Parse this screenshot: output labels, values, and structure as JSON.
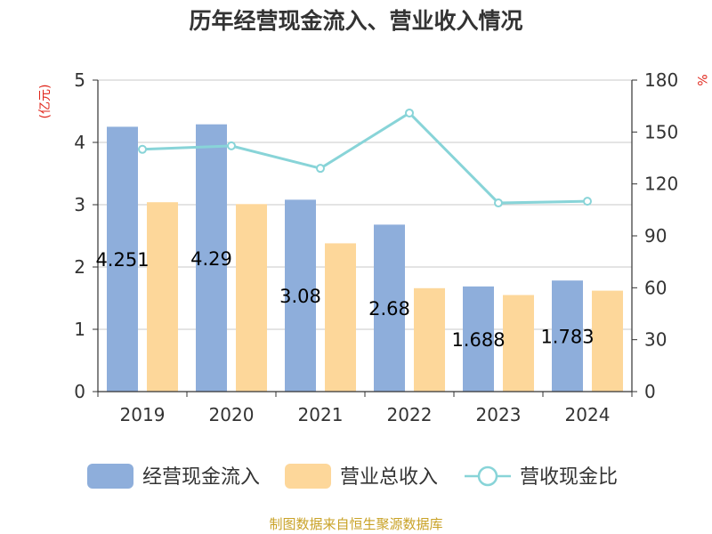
{
  "chart_data": {
    "type": "bar",
    "title": "历年经营现金流入、营业收入情况",
    "categories": [
      "2019",
      "2020",
      "2021",
      "2022",
      "2023",
      "2024"
    ],
    "y_left": {
      "unit": "(亿元)",
      "ylim": [
        0,
        5
      ],
      "ticks": [
        "0",
        "1",
        "2",
        "3",
        "4",
        "5"
      ]
    },
    "y_right": {
      "unit": "%",
      "ylim": [
        0,
        180
      ],
      "ticks": [
        "0",
        "30",
        "60",
        "90",
        "120",
        "150",
        "180"
      ]
    },
    "series": [
      {
        "name": "经营现金流入",
        "type": "bar",
        "axis": "left",
        "color": "#8eaedb",
        "values": [
          4.251,
          4.29,
          3.08,
          2.68,
          1.688,
          1.783
        ],
        "labels": [
          "4.251",
          "4.29",
          "3.08",
          "2.68",
          "1.688",
          "1.783"
        ]
      },
      {
        "name": "营业总收入",
        "type": "bar",
        "axis": "left",
        "color": "#fdd79a",
        "values": [
          3.04,
          3.01,
          2.38,
          1.66,
          1.55,
          1.62
        ]
      },
      {
        "name": "营收现金比",
        "type": "line",
        "axis": "right",
        "color": "#88d4d8",
        "values": [
          140,
          142,
          129,
          161,
          109,
          110
        ]
      }
    ],
    "grid": true,
    "legend": "bottom"
  },
  "footer": {
    "source": "制图数据来自恒生聚源数据库"
  }
}
